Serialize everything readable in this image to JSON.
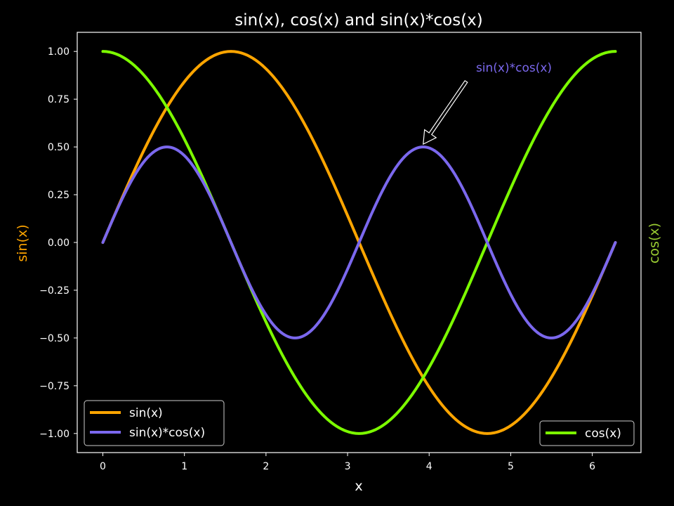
{
  "chart_data": {
    "type": "line",
    "title": "sin(x), cos(x) and sin(x)*cos(x)",
    "xlabel": "x",
    "ylabel_left": "sin(x)",
    "ylabel_right": "cos(x)",
    "xlim": [
      -0.314,
      6.597
    ],
    "ylim": [
      -1.1,
      1.1
    ],
    "xticks": [
      0,
      1,
      2,
      3,
      4,
      5,
      6
    ],
    "yticks": [
      1.0,
      0.75,
      0.5,
      0.25,
      0.0,
      -0.25,
      -0.5,
      -0.75,
      -1.0
    ],
    "ytick_labels": [
      "1.00",
      "0.75",
      "0.50",
      "0.25",
      "0.00",
      "−0.25",
      "−0.50",
      "−0.75",
      "−1.00"
    ],
    "grid": false,
    "x_range": [
      0,
      6.283
    ],
    "series": [
      {
        "name": "sin(x)",
        "function": "sin",
        "color": "#FFA500",
        "axis": "left"
      },
      {
        "name": "sin(x)*cos(x)",
        "function": "sincos",
        "color": "#7B68EE",
        "axis": "left"
      },
      {
        "name": "cos(x)",
        "function": "cos",
        "color": "#7CFC00",
        "axis": "right"
      }
    ],
    "legends": [
      {
        "placement": "lower-left",
        "entries": [
          "sin(x)",
          "sin(x)*cos(x)"
        ]
      },
      {
        "placement": "lower-right",
        "entries": [
          "cos(x)"
        ]
      }
    ],
    "annotation": {
      "text": "sin(x)*cos(x)",
      "point_x": 3.927,
      "point_y": 0.5,
      "color": "#7B68EE"
    },
    "axis_label_colors": {
      "left": "#FFA500",
      "right": "#9ACD32"
    },
    "frame_color": "#ffffff"
  }
}
